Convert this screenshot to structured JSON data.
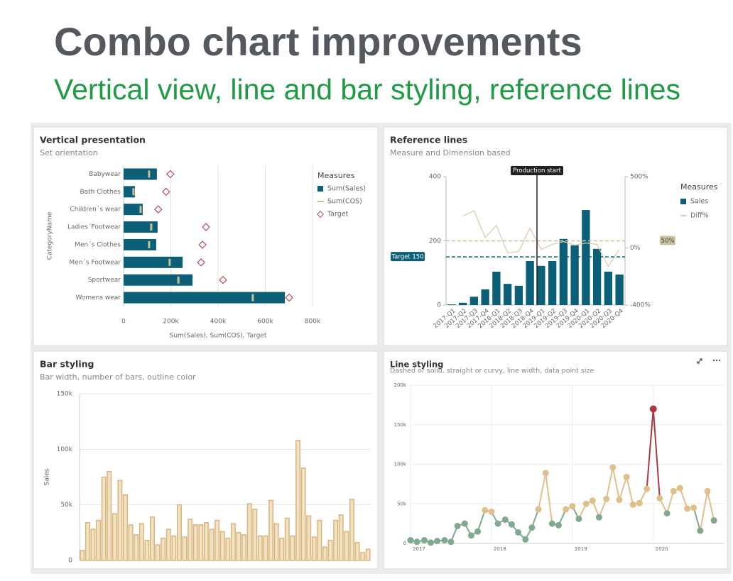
{
  "header": {
    "title": "Combo chart improvements",
    "subtitle": "Vertical view, line and bar styling, reference lines"
  },
  "chart_data": [
    {
      "type": "combo",
      "orientation": "horizontal",
      "title": "Vertical presentation",
      "subtitle": "Set orientation",
      "categories": [
        "Babywear",
        "Bath Clothes",
        "Children´s wear",
        "Ladies´Footwear",
        "Men´s Clothes",
        "Men´s Footwear",
        "Sportwear",
        "Womens wear"
      ],
      "series": [
        {
          "name": "Sum(Sales)",
          "mark": "bar",
          "color": "#0b5f77",
          "values": [
            141000,
            48000,
            81000,
            144000,
            138000,
            250000,
            292000,
            683000
          ]
        },
        {
          "name": "Sum(COS)",
          "mark": "tick",
          "color": "#c9bf9a",
          "values": [
            108000,
            42000,
            72000,
            117000,
            108000,
            195000,
            232000,
            547000
          ]
        },
        {
          "name": "Target",
          "mark": "diamond",
          "color": "#b5505d",
          "values": [
            198000,
            180000,
            147000,
            349000,
            334000,
            328000,
            421000,
            701000
          ]
        }
      ],
      "xlim": [
        0,
        800000
      ],
      "xticks": [
        0,
        {
          "value": 200000,
          "label": "200k"
        },
        {
          "value": 400000,
          "label": "400k"
        },
        {
          "value": 600000,
          "label": "600k"
        },
        {
          "value": 800000,
          "label": "800k"
        }
      ],
      "xlabel": "Sum(Sales), Sum(COS), Target",
      "ylabel": "CategoryName",
      "legend_title": "Measures",
      "legend": "right",
      "grid": true
    },
    {
      "type": "combo",
      "orientation": "vertical",
      "title": "Reference lines",
      "subtitle": "Measure and Dimension based",
      "categories": [
        "2017-Q1",
        "2017-Q2",
        "2017-Q3",
        "2017-Q4",
        "2018-Q1",
        "2018-Q2",
        "2018-Q3",
        "2018-Q4",
        "2019-Q1",
        "2019-Q2",
        "2019-Q3",
        "2019-Q4",
        "2020-Q1",
        "2020-Q2",
        "2020-Q3",
        "2020-Q4"
      ],
      "series": [
        {
          "name": "Sales",
          "mark": "bar",
          "color": "#0b5f77",
          "values": [
            2,
            7,
            26,
            49,
            104,
            66,
            60,
            137,
            122,
            137,
            206,
            186,
            296,
            175,
            104,
            95
          ]
        },
        {
          "name": "Diff%",
          "mark": "line",
          "axis": "y2",
          "color": "#d9cfae",
          "values": [
            null,
            223,
            262,
            74,
            158,
            -35,
            -25,
            139,
            -10,
            25,
            45,
            20,
            35,
            25,
            -129,
            -10
          ]
        }
      ],
      "ylim": [
        0,
        400
      ],
      "yticks": [
        0,
        200,
        400
      ],
      "y2lim": [
        -400,
        500
      ],
      "y2ticks": [
        {
          "value": -400,
          "label": "-400%"
        },
        {
          "value": 0,
          "label": "0%"
        },
        {
          "value": 500,
          "label": "500%"
        }
      ],
      "reference_lines": [
        {
          "label": "Target 150",
          "value": 150,
          "axis": "y",
          "color": "#0b5f77"
        },
        {
          "label": "50%",
          "value": 50,
          "axis": "y2",
          "color": "#c9c3a0"
        }
      ],
      "dimension_reference": {
        "label": "Production start",
        "category": "2019-Q1",
        "color": "#222222"
      },
      "legend_title": "Measures",
      "legend": "right"
    },
    {
      "type": "bar",
      "title": "Bar styling",
      "subtitle": "Bar width, number of bars, outline color",
      "values": [
        9000,
        34000,
        28000,
        36000,
        75000,
        80000,
        42000,
        72000,
        59000,
        32000,
        23000,
        33000,
        18000,
        39000,
        14000,
        20000,
        28000,
        22000,
        50000,
        21000,
        37000,
        32000,
        32000,
        34000,
        28000,
        36000,
        26000,
        20000,
        33000,
        25000,
        23000,
        51000,
        46000,
        22000,
        22000,
        54000,
        33000,
        20000,
        38000,
        22000,
        108000,
        83000,
        40000,
        21000,
        36000,
        12000,
        18000,
        36000,
        41000,
        26000,
        55000,
        16000,
        7000,
        10000
      ],
      "ylim": [
        0,
        150000
      ],
      "yticks": [
        0,
        {
          "value": 50000,
          "label": "50k"
        },
        {
          "value": 100000,
          "label": "100k"
        },
        {
          "value": 150000,
          "label": "150k"
        }
      ],
      "ylabel": "Sales",
      "color": "#f1e2c2",
      "outline_color": "#d8b57e",
      "grid": true
    },
    {
      "type": "line",
      "title": "Line styling",
      "subtitle": "Dashed or solid, straight or curvy, line width, data point size",
      "x": [
        2017,
        2017.08,
        2017.17,
        2017.25,
        2017.33,
        2017.42,
        2017.5,
        2017.58,
        2017.67,
        2017.75,
        2017.83,
        2017.92,
        2018,
        2018.08,
        2018.17,
        2018.25,
        2018.33,
        2018.42,
        2018.5,
        2018.58,
        2018.67,
        2018.75,
        2018.83,
        2018.92,
        2019,
        2019.08,
        2019.17,
        2019.25,
        2019.33,
        2019.42,
        2019.5,
        2019.58,
        2019.67,
        2019.75,
        2019.83,
        2019.92,
        2020,
        2020.08,
        2020.17,
        2020.25,
        2020.33,
        2020.42,
        2020.5,
        2020.58,
        2020.67,
        2020.75
      ],
      "values": [
        4000,
        2000,
        4000,
        1000,
        3000,
        4000,
        2000,
        22000,
        25000,
        10000,
        15000,
        42000,
        40000,
        25000,
        30000,
        24000,
        14000,
        5000,
        20000,
        43000,
        89000,
        25000,
        23000,
        43000,
        47000,
        31000,
        50000,
        54000,
        33000,
        56000,
        96000,
        55000,
        84000,
        49000,
        51000,
        69000,
        170000,
        57000,
        38000,
        66000,
        70000,
        44000,
        45000,
        16000,
        66000,
        29000
      ],
      "xlim": [
        2017,
        2020.88
      ],
      "xticks": [
        2017,
        2018,
        2019,
        2020
      ],
      "ylim": [
        0,
        200000
      ],
      "yticks": [
        0,
        {
          "value": 50000,
          "label": "50k"
        },
        {
          "value": 100000,
          "label": "100k"
        },
        {
          "value": 150000,
          "label": "150k"
        },
        {
          "value": 200000,
          "label": "200k"
        }
      ],
      "color_low": "#7faa90",
      "color_high": "#e0c08a",
      "color_threshold": 40000,
      "color_max": "#a83a46",
      "grid": true
    }
  ]
}
